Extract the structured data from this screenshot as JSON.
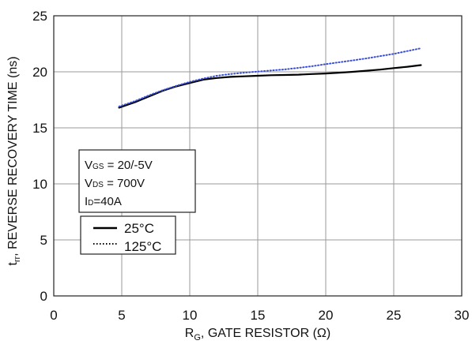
{
  "chart_data": {
    "type": "line",
    "xlabel": {
      "main": "R",
      "sub": "G",
      "rest": ", GATE RESISTOR (Ω)"
    },
    "ylabel": {
      "main": "t",
      "sub": "rr",
      "rest": ", REVERSE RECOVERY TIME (ns)"
    },
    "xlim": [
      0,
      30
    ],
    "ylim": [
      0,
      25
    ],
    "xticks": [
      0,
      5,
      10,
      15,
      20,
      25,
      30
    ],
    "yticks": [
      0,
      5,
      10,
      15,
      20,
      25
    ],
    "grid": true,
    "conditions": {
      "vgs": {
        "main": "V",
        "sub": "GS",
        "rest": " = 20/-5V"
      },
      "vds": {
        "main": "V",
        "sub": "DS",
        "rest": " = 700V"
      },
      "id": {
        "main": "I",
        "sub": "D",
        "rest": "=40A"
      }
    },
    "legend_position": "left",
    "series": [
      {
        "name": "25°C",
        "color": "#000000",
        "style": "solid",
        "x": [
          4.8,
          6,
          7,
          8,
          9,
          10,
          11,
          12,
          13,
          14,
          15,
          16,
          17,
          18,
          19,
          20,
          21,
          22,
          23,
          24,
          25,
          26,
          27
        ],
        "y": [
          16.8,
          17.3,
          17.8,
          18.3,
          18.7,
          19.0,
          19.3,
          19.45,
          19.55,
          19.6,
          19.65,
          19.7,
          19.72,
          19.75,
          19.8,
          19.85,
          19.92,
          20.0,
          20.1,
          20.2,
          20.33,
          20.45,
          20.6
        ]
      },
      {
        "name": "125°C",
        "color": "#3a4fd6",
        "style": "dotted",
        "x": [
          4.8,
          6,
          7,
          8,
          9,
          10,
          11,
          12,
          13,
          14,
          15,
          16,
          17,
          18,
          19,
          20,
          21,
          22,
          23,
          24,
          25,
          26,
          27
        ],
        "y": [
          16.9,
          17.4,
          17.9,
          18.35,
          18.75,
          19.1,
          19.4,
          19.65,
          19.8,
          19.92,
          20.02,
          20.12,
          20.22,
          20.35,
          20.5,
          20.68,
          20.85,
          21.02,
          21.2,
          21.4,
          21.6,
          21.85,
          22.1
        ]
      }
    ]
  }
}
